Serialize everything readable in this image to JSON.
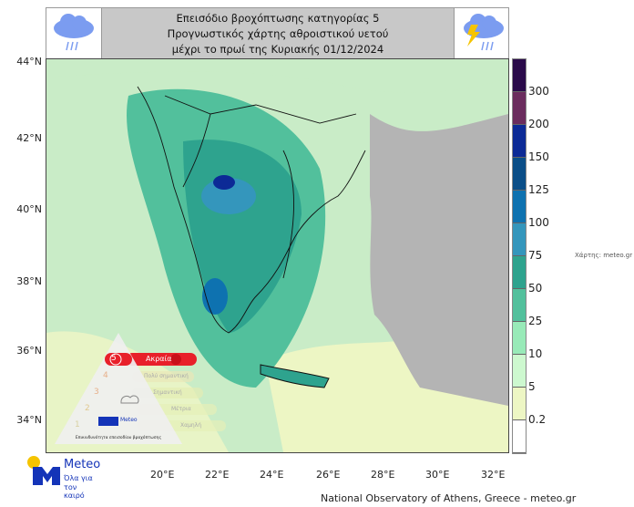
{
  "title": {
    "line1": "Επεισόδιο βροχόπτωσης κατηγορίας 5",
    "line2": "Προγνωστικός χάρτης αθροιστικού υετού",
    "line3": "μέχρι το πρωί της Κυριακής 01/12/2024"
  },
  "icons": {
    "left": "rain-cloud-icon",
    "right": "thunderstorm-cloud-icon"
  },
  "lat_labels": [
    "44°N",
    "42°N",
    "40°N",
    "38°N",
    "36°N",
    "34°N"
  ],
  "lon_labels": [
    "20°E",
    "22°E",
    "24°E",
    "26°E",
    "28°E",
    "30°E",
    "32°E"
  ],
  "colorbar": {
    "labels": [
      "300",
      "200",
      "150",
      "125",
      "100",
      "75",
      "50",
      "25",
      "10",
      "5",
      "0.2"
    ],
    "colors": [
      "#2a0a4a",
      "#6b2c5e",
      "#0c2a96",
      "#0a4e88",
      "#0e72b0",
      "#3496bc",
      "#2ea38e",
      "#52c09c",
      "#98eab8",
      "#cdf8cf",
      "#edf6c4",
      "#ffffff"
    ]
  },
  "credit": "Χάρτης: meteo.gr",
  "footer": "National Observatory of Athens, Greece - meteo.gr",
  "legend": {
    "levels": [
      {
        "num": "5",
        "label": "Ακραία"
      },
      {
        "num": "4",
        "label": "Πολύ σημαντική"
      },
      {
        "num": "3",
        "label": "Σημαντική"
      },
      {
        "num": "2",
        "label": "Μέτρια"
      },
      {
        "num": "1",
        "label": "Χαμηλή"
      }
    ],
    "caption": "Επικινδυνότητα επεισοδίου βροχόπτωσης",
    "brand": "Meteo"
  },
  "logo": {
    "brand": "Meteo",
    "tagline1": "Όλα για",
    "tagline2": "τον καιρό"
  }
}
